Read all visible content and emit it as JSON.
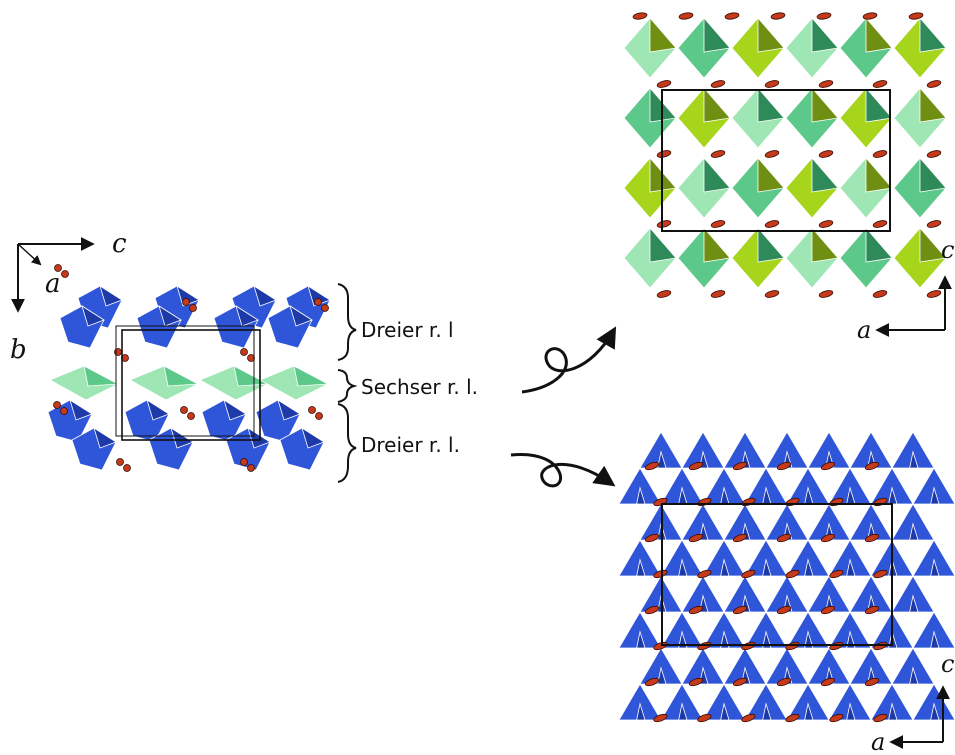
{
  "axes": {
    "left": {
      "horizontal": "c",
      "vertical": "b",
      "view": "a"
    },
    "top_right": {
      "vertical": "c",
      "horizontal": "a"
    },
    "bottom_right": {
      "vertical": "c",
      "horizontal": "a"
    }
  },
  "layers": [
    {
      "label": "Dreier r. l"
    },
    {
      "label": "Sechser r. l."
    },
    {
      "label": "Dreier r. l."
    }
  ],
  "colors": {
    "dreier_blue": "#2f55d9",
    "dreier_blue_dark": "#1e3aa8",
    "sechser_light": "#9ee6b4",
    "sechser_mid": "#5cc98a",
    "sechser_dark": "#2f8a5a",
    "sechser_lime": "#a6d51c",
    "sechser_olive": "#6e8f12",
    "cation": "#c43a1a",
    "frame": "#111111"
  }
}
